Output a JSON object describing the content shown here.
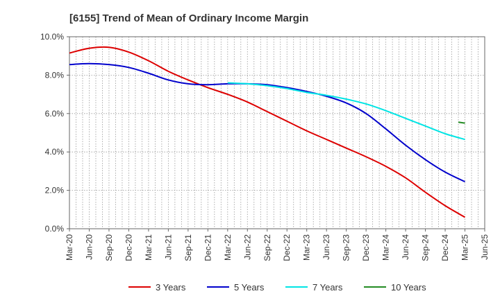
{
  "chart_data": {
    "type": "line",
    "title": "[6155]  Trend of Mean of Ordinary Income Margin",
    "xlabel": "",
    "ylabel": "",
    "x_ticks": [
      "Mar-20",
      "Jun-20",
      "Sep-20",
      "Dec-20",
      "Mar-21",
      "Jun-21",
      "Sep-21",
      "Dec-21",
      "Mar-22",
      "Jun-22",
      "Sep-22",
      "Dec-22",
      "Mar-23",
      "Jun-23",
      "Sep-23",
      "Dec-23",
      "Mar-24",
      "Jun-24",
      "Sep-24",
      "Dec-24",
      "Mar-25",
      "Jun-25"
    ],
    "y_ticks": [
      "0.0%",
      "2.0%",
      "4.0%",
      "6.0%",
      "8.0%",
      "10.0%"
    ],
    "y_tick_values": [
      0,
      2,
      4,
      6,
      8,
      10
    ],
    "ylim": [
      0,
      10
    ],
    "grid": true,
    "legend_position": "bottom",
    "series": [
      {
        "name": "3 Years",
        "color": "#dd0000",
        "x": [
          "Mar-20",
          "Jun-20",
          "Sep-20",
          "Dec-20",
          "Mar-21",
          "Jun-21",
          "Sep-21",
          "Dec-21",
          "Mar-22",
          "Jun-22",
          "Sep-22",
          "Dec-22",
          "Mar-23",
          "Jun-23",
          "Sep-23",
          "Dec-23",
          "Mar-24",
          "Jun-24",
          "Sep-24",
          "Dec-24",
          "Mar-25"
        ],
        "values": [
          9.15,
          9.4,
          9.45,
          9.2,
          8.75,
          8.2,
          7.75,
          7.35,
          7.0,
          6.6,
          6.1,
          5.6,
          5.1,
          4.65,
          4.2,
          3.75,
          3.25,
          2.65,
          1.9,
          1.2,
          0.6
        ]
      },
      {
        "name": "5 Years",
        "color": "#0000cc",
        "x": [
          "Mar-20",
          "Jun-20",
          "Sep-20",
          "Dec-20",
          "Mar-21",
          "Jun-21",
          "Sep-21",
          "Dec-21",
          "Mar-22",
          "Jun-22",
          "Sep-22",
          "Dec-22",
          "Mar-23",
          "Jun-23",
          "Sep-23",
          "Dec-23",
          "Mar-24",
          "Jun-24",
          "Sep-24",
          "Dec-24",
          "Mar-25"
        ],
        "values": [
          8.55,
          8.6,
          8.55,
          8.4,
          8.1,
          7.75,
          7.55,
          7.5,
          7.55,
          7.55,
          7.5,
          7.35,
          7.15,
          6.9,
          6.55,
          6.0,
          5.2,
          4.35,
          3.6,
          2.95,
          2.45
        ]
      },
      {
        "name": "7 Years",
        "color": "#00e5e5",
        "x": [
          "Mar-22",
          "Jun-22",
          "Sep-22",
          "Dec-22",
          "Mar-23",
          "Jun-23",
          "Sep-23",
          "Dec-23",
          "Mar-24",
          "Jun-24",
          "Sep-24",
          "Dec-24",
          "Mar-25"
        ],
        "values": [
          7.6,
          7.55,
          7.45,
          7.3,
          7.1,
          6.95,
          6.75,
          6.5,
          6.15,
          5.75,
          5.35,
          4.95,
          4.65
        ]
      },
      {
        "name": "10 Years",
        "color": "#228b22",
        "x": [
          "Feb-25",
          "Mar-25"
        ],
        "values": [
          5.55,
          5.5
        ]
      }
    ]
  }
}
